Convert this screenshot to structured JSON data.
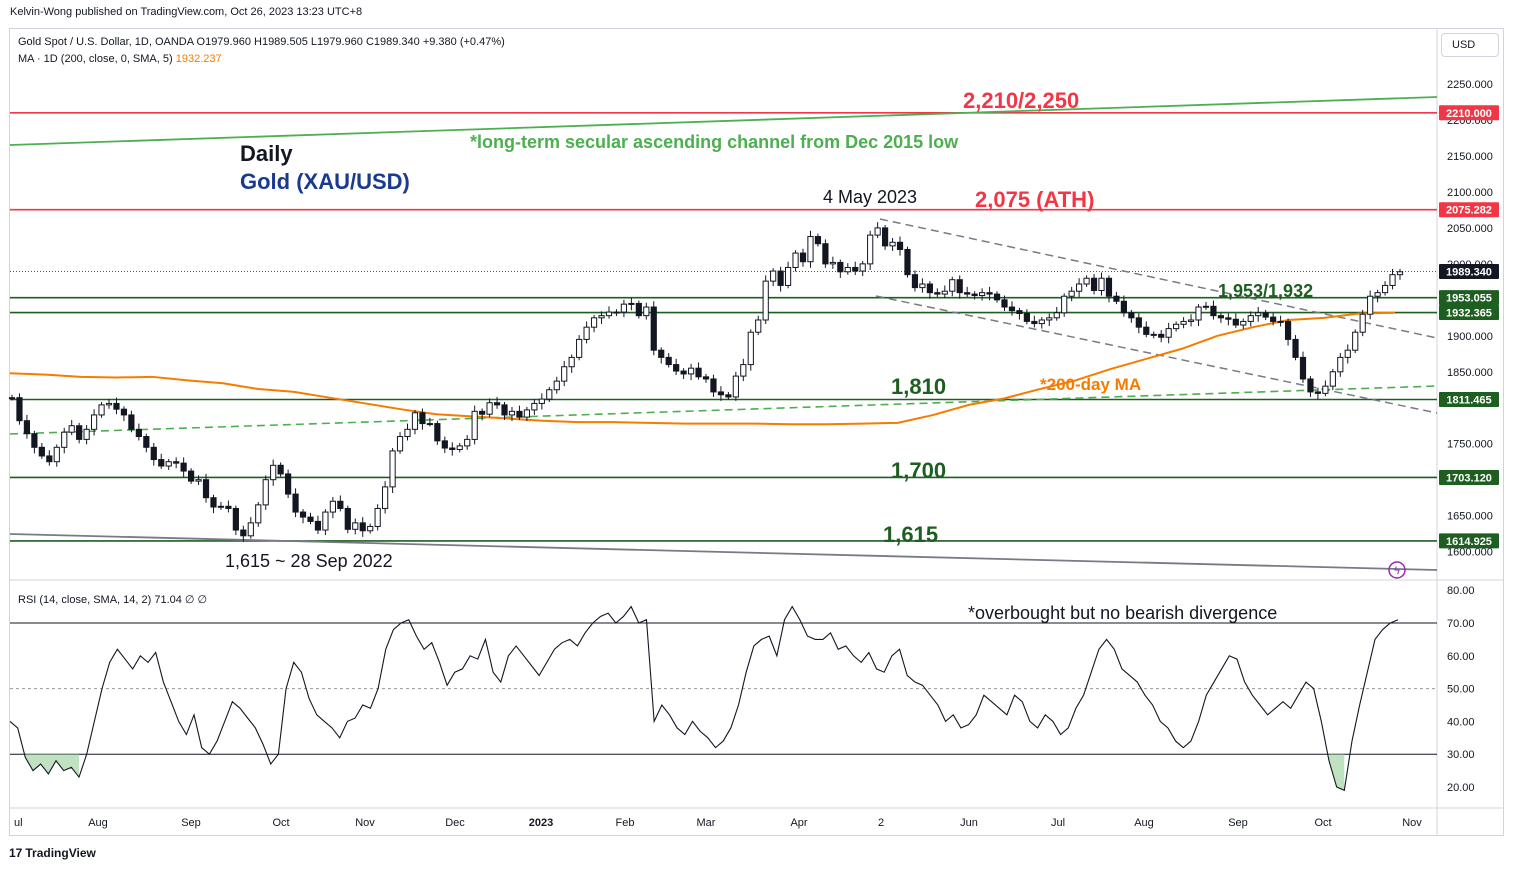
{
  "publisher": "Kelvin-Wong published on TradingView.com, Oct 26, 2023 13:23 UTC+8",
  "legend": {
    "symbol_line": "Gold Spot / U.S. Dollar, 1D, OANDA  O1979.960  H1989.505  L1979.960  C1989.340  +9.380 (+0.47%)",
    "ma_label": "MA · 1D (200, close, 0, SMA, 5)",
    "ma_value": "1932.237",
    "rsi_line": "RSI (14, close, SMA, 14, 2)  71.04  ∅  ∅"
  },
  "currency_button": "USD",
  "branding": "TradingView",
  "chart_data": {
    "type": "candlestick",
    "timeframe": "1D",
    "x_labels": [
      "ul",
      "Aug",
      "Sep",
      "Oct",
      "Nov",
      "Dec",
      "2023",
      "Feb",
      "Mar",
      "Apr",
      "2",
      "Jun",
      "Jul",
      "Aug",
      "Sep",
      "Oct",
      "Nov"
    ],
    "price_axis_ticks": [
      "2250.000",
      "2200.000",
      "2150.000",
      "2100.000",
      "2050.000",
      "2000.000",
      "1900.000",
      "1850.000",
      "1750.000",
      "1700.000",
      "1650.000",
      "1600.000"
    ],
    "price_tags": [
      {
        "value": "2210.000",
        "color": "#f23645"
      },
      {
        "value": "2075.282",
        "color": "#f23645"
      },
      {
        "value": "1989.340",
        "color": "#131722"
      },
      {
        "value": "1953.055",
        "color": "#1e5e20"
      },
      {
        "value": "1932.365",
        "color": "#1e5e20"
      },
      {
        "value": "1811.465",
        "color": "#1e5e20"
      },
      {
        "value": "1703.120",
        "color": "#1e5e20"
      },
      {
        "value": "1614.925",
        "color": "#1e5e20"
      }
    ],
    "horizontal_levels": [
      {
        "price": 2210,
        "color": "#f23645"
      },
      {
        "price": 2075.282,
        "color": "#f23645"
      },
      {
        "price": 1953.055,
        "color": "#1e5e20"
      },
      {
        "price": 1932.365,
        "color": "#1e5e20"
      },
      {
        "price": 1811.465,
        "color": "#1e5e20"
      },
      {
        "price": 1703.12,
        "color": "#1e5e20"
      },
      {
        "price": 1614.925,
        "color": "#1e5e20"
      }
    ],
    "price_close_path": [
      1814,
      1782,
      1764,
      1745,
      1733,
      1725,
      1745,
      1766,
      1775,
      1756,
      1770,
      1790,
      1804,
      1806,
      1798,
      1790,
      1770,
      1760,
      1745,
      1728,
      1719,
      1725,
      1723,
      1712,
      1698,
      1700,
      1675,
      1662,
      1663,
      1660,
      1630,
      1622,
      1640,
      1665,
      1700,
      1720,
      1708,
      1680,
      1655,
      1648,
      1642,
      1630,
      1655,
      1670,
      1660,
      1631,
      1640,
      1629,
      1635,
      1660,
      1690,
      1740,
      1760,
      1770,
      1793,
      1778,
      1778,
      1754,
      1744,
      1742,
      1747,
      1756,
      1795,
      1791,
      1807,
      1804,
      1790,
      1795,
      1787,
      1797,
      1806,
      1812,
      1825,
      1837,
      1857,
      1870,
      1895,
      1912,
      1925,
      1928,
      1933,
      1933,
      1944,
      1945,
      1928,
      1940,
      1880,
      1870,
      1860,
      1851,
      1847,
      1855,
      1843,
      1840,
      1822,
      1818,
      1815,
      1844,
      1860,
      1905,
      1922,
      1976,
      1990,
      1970,
      1995,
      2015,
      2003,
      2038,
      2028,
      2000,
      2002,
      1989,
      1995,
      1990,
      2000,
      2040,
      2050,
      2025,
      2030,
      2020,
      1985,
      1967,
      1972,
      1960,
      1958,
      1962,
      1978,
      1960,
      1958,
      1956,
      1960,
      1958,
      1950,
      1940,
      1935,
      1931,
      1920,
      1917,
      1922,
      1925,
      1932,
      1955,
      1962,
      1972,
      1980,
      1963,
      1980,
      1955,
      1948,
      1932,
      1925,
      1912,
      1902,
      1902,
      1898,
      1910,
      1916,
      1920,
      1922,
      1940,
      1941,
      1928,
      1925,
      1923,
      1915,
      1920,
      1928,
      1932,
      1926,
      1920,
      1920,
      1895,
      1870,
      1840,
      1822,
      1820,
      1830,
      1850,
      1870,
      1880,
      1905,
      1930,
      1955,
      1960,
      1970,
      1985,
      1989
    ],
    "ma200_path": [
      1848,
      1846,
      1843,
      1842,
      1843,
      1838,
      1834,
      1826,
      1822,
      1814,
      1806,
      1798,
      1791,
      1788,
      1785,
      1782,
      1780,
      1780,
      1779,
      1778,
      1778,
      1778,
      1777,
      1777,
      1778,
      1779,
      1790,
      1804,
      1813,
      1826,
      1838,
      1854,
      1868,
      1882,
      1900,
      1912,
      1922,
      1925,
      1931,
      1932
    ],
    "annotations": [
      {
        "text": "2,210/2,250",
        "color": "#f23645"
      },
      {
        "text": "*long-term secular ascending channel from Dec 2015 low",
        "color": "#4caf50"
      },
      {
        "text": "Daily",
        "color": "#131722"
      },
      {
        "text": "Gold (XAU/USD)",
        "color": "#1a3a8f"
      },
      {
        "text": "4 May 2023",
        "color": "#131722"
      },
      {
        "text": "2,075 (ATH)",
        "color": "#f23645"
      },
      {
        "text": "1,953/1,932",
        "color": "#1e5e20"
      },
      {
        "text": "1,810",
        "color": "#1e5e20"
      },
      {
        "text": "*200-day MA",
        "color": "#f57c00"
      },
      {
        "text": "1,700",
        "color": "#1e5e20"
      },
      {
        "text": "1,615",
        "color": "#1e5e20"
      },
      {
        "text": "1,615 ~ 28 Sep 2022",
        "color": "#131722"
      },
      {
        "text": "*overbought but no bearish divergence",
        "color": "#131722"
      }
    ],
    "rsi": {
      "ticks": [
        "80.00",
        "70.00",
        "60.00",
        "50.00",
        "40.00",
        "30.00",
        "20.00"
      ],
      "levels": {
        "upper": 70,
        "middle": 50,
        "lower": 30
      },
      "value_tag": "71.04",
      "values": [
        40,
        38,
        29,
        25,
        27,
        24,
        28,
        25,
        26,
        23,
        30,
        40,
        50,
        58,
        62,
        59,
        56,
        60,
        58,
        61,
        52,
        46,
        40,
        36,
        42,
        32,
        30,
        34,
        40,
        46,
        44,
        41,
        38,
        33,
        27,
        30,
        50,
        58,
        55,
        47,
        42,
        40,
        38,
        35,
        40,
        41,
        45,
        44,
        50,
        62,
        68,
        70,
        71,
        66,
        62,
        64,
        58,
        51,
        55,
        56,
        60,
        59,
        65,
        55,
        52,
        60,
        63,
        60,
        57,
        54,
        58,
        62,
        64,
        65,
        63,
        67,
        70,
        72,
        73,
        70,
        72,
        75,
        70,
        71,
        40,
        45,
        42,
        38,
        36,
        40,
        37,
        35,
        32,
        34,
        38,
        45,
        55,
        63,
        65,
        66,
        60,
        71,
        75,
        71,
        66,
        65,
        65,
        67,
        62,
        63,
        60,
        58,
        61,
        56,
        55,
        60,
        62,
        54,
        52,
        51,
        48,
        45,
        40,
        42,
        38,
        39,
        42,
        48,
        46,
        44,
        42,
        48,
        46,
        40,
        38,
        42,
        40,
        36,
        38,
        44,
        48,
        55,
        62,
        65,
        62,
        56,
        54,
        52,
        48,
        45,
        40,
        38,
        34,
        32,
        34,
        40,
        48,
        52,
        56,
        60,
        59,
        52,
        48,
        45,
        42,
        44,
        46,
        44,
        48,
        52,
        50,
        40,
        28,
        20,
        19,
        34,
        45,
        55,
        65,
        68,
        70,
        71
      ]
    }
  }
}
